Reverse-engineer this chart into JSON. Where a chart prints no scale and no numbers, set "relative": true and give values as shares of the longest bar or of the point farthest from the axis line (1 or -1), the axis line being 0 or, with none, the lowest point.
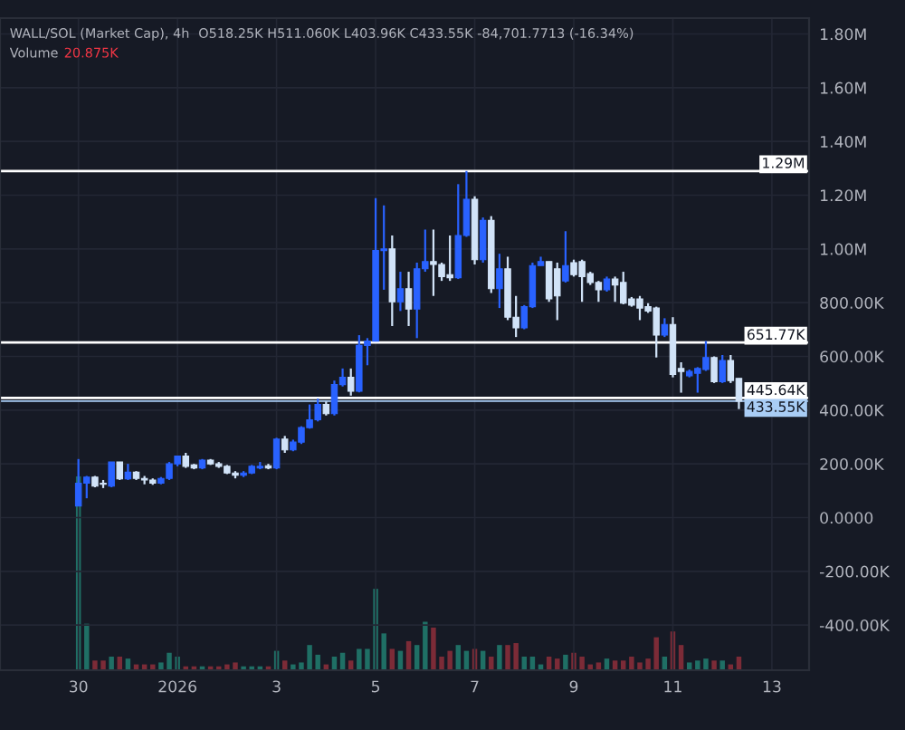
{
  "chart_data": [
    {
      "type": "candlestick",
      "title": "WALL/SOL (Market Cap), 4h",
      "annotations": [
        "O518.25K H511.060K L403.96K C433.55K -84,701.7713 (-16.34%)",
        "Volume",
        "20.875K"
      ],
      "x": [
        "2025-12-30T00:00",
        "2025-12-30T04:00",
        "2025-12-30T08:00",
        "2025-12-30T12:00",
        "2025-12-30T16:00",
        "2025-12-30T20:00",
        "2025-12-31T00:00",
        "2025-12-31T04:00",
        "2025-12-31T08:00",
        "2025-12-31T12:00",
        "2025-12-31T16:00",
        "2025-12-31T20:00",
        "2026-01-01T00:00",
        "2026-01-01T04:00",
        "2026-01-01T08:00",
        "2026-01-01T12:00",
        "2026-01-01T16:00",
        "2026-01-01T20:00",
        "2026-01-02T00:00",
        "2026-01-02T04:00",
        "2026-01-02T08:00",
        "2026-01-02T12:00",
        "2026-01-02T16:00",
        "2026-01-02T20:00",
        "2026-01-03T00:00",
        "2026-01-03T04:00",
        "2026-01-03T08:00",
        "2026-01-03T12:00",
        "2026-01-03T16:00",
        "2026-01-03T20:00",
        "2026-01-04T00:00",
        "2026-01-04T04:00",
        "2026-01-04T08:00",
        "2026-01-04T12:00",
        "2026-01-04T16:00",
        "2026-01-04T20:00",
        "2026-01-05T00:00",
        "2026-01-05T04:00",
        "2026-01-05T08:00",
        "2026-01-05T12:00",
        "2026-01-05T16:00",
        "2026-01-05T20:00",
        "2026-01-06T00:00",
        "2026-01-06T04:00",
        "2026-01-06T08:00",
        "2026-01-06T12:00",
        "2026-01-06T16:00",
        "2026-01-06T20:00",
        "2026-01-07T00:00",
        "2026-01-07T04:00",
        "2026-01-07T08:00",
        "2026-01-07T12:00",
        "2026-01-07T16:00",
        "2026-01-07T20:00",
        "2026-01-08T00:00",
        "2026-01-08T04:00",
        "2026-01-08T08:00",
        "2026-01-08T12:00",
        "2026-01-08T16:00",
        "2026-01-08T20:00",
        "2026-01-09T00:00",
        "2026-01-09T04:00",
        "2026-01-09T08:00",
        "2026-01-09T12:00",
        "2026-01-09T16:00",
        "2026-01-09T20:00",
        "2026-01-10T00:00",
        "2026-01-10T04:00",
        "2026-01-10T08:00",
        "2026-01-10T12:00",
        "2026-01-10T16:00",
        "2026-01-10T20:00",
        "2026-01-11T00:00",
        "2026-01-11T04:00",
        "2026-01-11T08:00",
        "2026-01-11T12:00",
        "2026-01-11T16:00",
        "2026-01-11T20:00",
        "2026-01-12T00:00",
        "2026-01-12T04:00",
        "2026-01-12T08:00"
      ],
      "ohlc": [
        [
          43000,
          218000,
          43000,
          128000
        ],
        [
          128000,
          155000,
          72000,
          151000
        ],
        [
          151000,
          155000,
          113000,
          117000
        ],
        [
          128000,
          140000,
          110000,
          124000
        ],
        [
          117000,
          207000,
          113000,
          207000
        ],
        [
          207000,
          207000,
          140000,
          144000
        ],
        [
          144000,
          200000,
          140000,
          169000
        ],
        [
          169000,
          173000,
          140000,
          146000
        ],
        [
          146000,
          155000,
          124000,
          140000
        ],
        [
          140000,
          146000,
          122000,
          128000
        ],
        [
          128000,
          151000,
          124000,
          146000
        ],
        [
          146000,
          207000,
          140000,
          200000
        ],
        [
          200000,
          229000,
          191000,
          229000
        ],
        [
          229000,
          241000,
          185000,
          191000
        ],
        [
          196000,
          200000,
          180000,
          185000
        ],
        [
          185000,
          218000,
          180000,
          214000
        ],
        [
          214000,
          218000,
          196000,
          200000
        ],
        [
          200000,
          207000,
          185000,
          191000
        ],
        [
          191000,
          196000,
          162000,
          166000
        ],
        [
          166000,
          173000,
          146000,
          158000
        ],
        [
          158000,
          173000,
          151000,
          166000
        ],
        [
          166000,
          196000,
          162000,
          191000
        ],
        [
          185000,
          207000,
          180000,
          191000
        ],
        [
          193000,
          200000,
          180000,
          185000
        ],
        [
          185000,
          297000,
          180000,
          292000
        ],
        [
          292000,
          304000,
          241000,
          252000
        ],
        [
          252000,
          290000,
          247000,
          281000
        ],
        [
          281000,
          340000,
          274000,
          335000
        ],
        [
          335000,
          421000,
          331000,
          364000
        ],
        [
          364000,
          443000,
          358000,
          421000
        ],
        [
          421000,
          432000,
          380000,
          387000
        ],
        [
          387000,
          510000,
          380000,
          495000
        ],
        [
          495000,
          555000,
          488000,
          522000
        ],
        [
          522000,
          555000,
          454000,
          470000
        ],
        [
          470000,
          679000,
          466000,
          641000
        ],
        [
          641000,
          668000,
          567000,
          657000
        ],
        [
          657000,
          1189000,
          657000,
          994000
        ],
        [
          994000,
          1162000,
          848000,
          1000000
        ],
        [
          1000000,
          1050000,
          713000,
          803000
        ],
        [
          803000,
          915000,
          769000,
          852000
        ],
        [
          852000,
          915000,
          713000,
          776000
        ],
        [
          776000,
          949000,
          668000,
          926000
        ],
        [
          926000,
          1072000,
          915000,
          953000
        ],
        [
          953000,
          1072000,
          825000,
          942000
        ],
        [
          942000,
          949000,
          881000,
          897000
        ],
        [
          904000,
          1050000,
          881000,
          893000
        ],
        [
          893000,
          1241000,
          888000,
          1050000
        ],
        [
          1050000,
          1290000,
          1045000,
          1185000
        ],
        [
          1185000,
          1196000,
          942000,
          960000
        ],
        [
          960000,
          1117000,
          949000,
          1106000
        ],
        [
          1106000,
          1122000,
          836000,
          852000
        ],
        [
          852000,
          982000,
          780000,
          926000
        ],
        [
          926000,
          971000,
          735000,
          746000
        ],
        [
          746000,
          825000,
          672000,
          706000
        ],
        [
          706000,
          791000,
          701000,
          785000
        ],
        [
          785000,
          949000,
          780000,
          938000
        ],
        [
          938000,
          971000,
          938000,
          953000
        ],
        [
          953000,
          953000,
          803000,
          814000
        ],
        [
          926000,
          949000,
          735000,
          825000
        ],
        [
          881000,
          1066000,
          875000,
          938000
        ],
        [
          949000,
          960000,
          897000,
          904000
        ],
        [
          953000,
          960000,
          803000,
          897000
        ],
        [
          908000,
          915000,
          866000,
          875000
        ],
        [
          875000,
          881000,
          803000,
          848000
        ],
        [
          848000,
          897000,
          841000,
          888000
        ],
        [
          888000,
          897000,
          803000,
          866000
        ],
        [
          875000,
          915000,
          794000,
          798000
        ],
        [
          814000,
          821000,
          785000,
          791000
        ],
        [
          814000,
          825000,
          735000,
          780000
        ],
        [
          785000,
          798000,
          762000,
          769000
        ],
        [
          780000,
          785000,
          596000,
          679000
        ],
        [
          679000,
          742000,
          672000,
          719000
        ],
        [
          719000,
          746000,
          522000,
          533000
        ],
        [
          555000,
          578000,
          465000,
          544000
        ],
        [
          528000,
          551000,
          522000,
          544000
        ],
        [
          537000,
          560000,
          465000,
          555000
        ],
        [
          551000,
          657000,
          546000,
          596000
        ],
        [
          596000,
          600000,
          501000,
          506000
        ],
        [
          506000,
          605000,
          501000,
          585000
        ],
        [
          585000,
          605000,
          501000,
          510000
        ],
        [
          518250,
          518250,
          403960,
          433550
        ]
      ],
      "colors": [
        "#2962ff",
        "#2962ff",
        "#d1e3f8",
        "#d1e3f8",
        "#2962ff",
        "#d1e3f8",
        "#2962ff",
        "#d1e3f8",
        "#d1e3f8",
        "#d1e3f8",
        "#2962ff",
        "#2962ff",
        "#2962ff",
        "#d1e3f8",
        "#d1e3f8",
        "#2962ff",
        "#d1e3f8",
        "#d1e3f8",
        "#d1e3f8",
        "#d1e3f8",
        "#2962ff",
        "#2962ff",
        "#2962ff",
        "#d1e3f8",
        "#2962ff",
        "#d1e3f8",
        "#2962ff",
        "#2962ff",
        "#2962ff",
        "#2962ff",
        "#d1e3f8",
        "#2962ff",
        "#2962ff",
        "#d1e3f8",
        "#2962ff",
        "#2962ff",
        "#2962ff",
        "#2962ff",
        "#d1e3f8",
        "#2962ff",
        "#d1e3f8",
        "#2962ff",
        "#2962ff",
        "#d1e3f8",
        "#d1e3f8",
        "#d1e3f8",
        "#2962ff",
        "#2962ff",
        "#d1e3f8",
        "#2962ff",
        "#d1e3f8",
        "#2962ff",
        "#d1e3f8",
        "#d1e3f8",
        "#2962ff",
        "#2962ff",
        "#2962ff",
        "#d1e3f8",
        "#d1e3f8",
        "#2962ff",
        "#d1e3f8",
        "#d1e3f8",
        "#d1e3f8",
        "#d1e3f8",
        "#2962ff",
        "#d1e3f8",
        "#d1e3f8",
        "#d1e3f8",
        "#d1e3f8",
        "#d1e3f8",
        "#d1e3f8",
        "#2962ff",
        "#d1e3f8",
        "#d1e3f8",
        "#2962ff",
        "#2962ff",
        "#2962ff",
        "#d1e3f8",
        "#2962ff",
        "#d1e3f8",
        "#d1e3f8"
      ],
      "xlim": [
        "2025-12-28T10:00",
        "2026-01-13T18:00"
      ],
      "xticks": [
        {
          "value": "2025-12-30",
          "label": null
        },
        {
          "value": "2026-01-01",
          "label": null
        },
        {
          "value": "2026-01-03",
          "label": null
        },
        {
          "value": "2026-01-05",
          "label": null
        },
        {
          "value": "2026-01-07",
          "label": null
        },
        {
          "value": "2026-01-09",
          "label": null
        },
        {
          "value": "2026-01-11",
          "label": null
        },
        {
          "value": "2026-01-13",
          "label": null
        }
      ],
      "ylim": [
        -568000,
        1859000
      ],
      "yticks": [
        {
          "value": -400000,
          "label": "-400.00K"
        },
        {
          "value": -200000,
          "label": "-200.00K"
        },
        {
          "value": 0,
          "label": "0.0000"
        },
        {
          "value": 200000,
          "label": "200.00K"
        },
        {
          "value": 400000,
          "label": "400.00K"
        },
        {
          "value": 600000,
          "label": "600.00K"
        },
        {
          "value": 800000,
          "label": "800.00K"
        },
        {
          "value": 1000000,
          "label": "1.00M"
        },
        {
          "value": 1200000,
          "label": "1.20M"
        },
        {
          "value": 1400000,
          "label": "1.40M"
        },
        {
          "value": 1600000,
          "label": "1.60M"
        },
        {
          "value": 1800000,
          "label": "1.80M"
        }
      ],
      "ref_lines": [
        {
          "axis": "y",
          "value": 1290000,
          "label": "1.29M",
          "color": "#ffffff"
        },
        {
          "axis": "y",
          "value": 651770,
          "label": "651.77K",
          "color": "#ffffff"
        },
        {
          "axis": "y",
          "value": 445640,
          "label": "445.64K",
          "color": "#ffffff"
        },
        {
          "axis": "y",
          "value": 433550,
          "label": "433.55K",
          "color": "#a9cdf5"
        }
      ],
      "grid": true,
      "tick_labels": "y"
    },
    {
      "type": "bar",
      "relative": true,
      "x": [
        "2025-12-30T00:00",
        "2025-12-30T04:00",
        "2025-12-30T08:00",
        "2025-12-30T12:00",
        "2025-12-30T16:00",
        "2025-12-30T20:00",
        "2025-12-31T00:00",
        "2025-12-31T04:00",
        "2025-12-31T08:00",
        "2025-12-31T12:00",
        "2025-12-31T16:00",
        "2025-12-31T20:00",
        "2026-01-01T00:00",
        "2026-01-01T04:00",
        "2026-01-01T08:00",
        "2026-01-01T12:00",
        "2026-01-01T16:00",
        "2026-01-01T20:00",
        "2026-01-02T00:00",
        "2026-01-02T04:00",
        "2026-01-02T08:00",
        "2026-01-02T12:00",
        "2026-01-02T16:00",
        "2026-01-02T20:00",
        "2026-01-03T00:00",
        "2026-01-03T04:00",
        "2026-01-03T08:00",
        "2026-01-03T12:00",
        "2026-01-03T16:00",
        "2026-01-03T20:00",
        "2026-01-04T00:00",
        "2026-01-04T04:00",
        "2026-01-04T08:00",
        "2026-01-04T12:00",
        "2026-01-04T16:00",
        "2026-01-04T20:00",
        "2026-01-05T00:00",
        "2026-01-05T04:00",
        "2026-01-05T08:00",
        "2026-01-05T12:00",
        "2026-01-05T16:00",
        "2026-01-05T20:00",
        "2026-01-06T00:00",
        "2026-01-06T04:00",
        "2026-01-06T08:00",
        "2026-01-06T12:00",
        "2026-01-06T16:00",
        "2026-01-06T20:00",
        "2026-01-07T00:00",
        "2026-01-07T04:00",
        "2026-01-07T08:00",
        "2026-01-07T12:00",
        "2026-01-07T16:00",
        "2026-01-07T20:00",
        "2026-01-08T00:00",
        "2026-01-08T04:00",
        "2026-01-08T08:00",
        "2026-01-08T12:00",
        "2026-01-08T16:00",
        "2026-01-08T20:00",
        "2026-01-09T00:00",
        "2026-01-09T04:00",
        "2026-01-09T08:00",
        "2026-01-09T12:00",
        "2026-01-09T16:00",
        "2026-01-09T20:00",
        "2026-01-10T00:00",
        "2026-01-10T04:00",
        "2026-01-10T08:00",
        "2026-01-10T12:00",
        "2026-01-10T16:00",
        "2026-01-10T20:00",
        "2026-01-11T00:00",
        "2026-01-11T04:00",
        "2026-01-11T08:00",
        "2026-01-11T12:00",
        "2026-01-11T16:00",
        "2026-01-11T20:00",
        "2026-01-12T00:00",
        "2026-01-12T04:00",
        "2026-01-12T08:00"
      ],
      "xlim": [
        "2025-12-28T10:00",
        "2026-01-13T18:00"
      ],
      "xticks": [
        {
          "value": "2025-12-30",
          "label": "30"
        },
        {
          "value": "2026-01-01",
          "label": "2026"
        },
        {
          "value": "2026-01-03",
          "label": "3"
        },
        {
          "value": "2026-01-05",
          "label": "5"
        },
        {
          "value": "2026-01-07",
          "label": "7"
        },
        {
          "value": "2026-01-09",
          "label": "9"
        },
        {
          "value": "2026-01-11",
          "label": "11"
        },
        {
          "value": "2026-01-13",
          "label": "13"
        }
      ],
      "values": [
        1.0,
        0.24,
        0.05,
        0.05,
        0.07,
        0.07,
        0.06,
        0.03,
        0.03,
        0.03,
        0.04,
        0.09,
        0.07,
        0.02,
        0.02,
        0.02,
        0.02,
        0.02,
        0.03,
        0.04,
        0.02,
        0.02,
        0.02,
        0.02,
        0.1,
        0.05,
        0.03,
        0.04,
        0.13,
        0.08,
        0.03,
        0.07,
        0.09,
        0.05,
        0.11,
        0.11,
        0.42,
        0.19,
        0.11,
        0.1,
        0.15,
        0.13,
        0.25,
        0.22,
        0.07,
        0.1,
        0.13,
        0.1,
        0.11,
        0.1,
        0.07,
        0.13,
        0.13,
        0.14,
        0.07,
        0.07,
        0.03,
        0.07,
        0.06,
        0.08,
        0.09,
        0.07,
        0.03,
        0.04,
        0.06,
        0.05,
        0.05,
        0.07,
        0.04,
        0.06,
        0.17,
        0.07,
        0.2,
        0.13,
        0.04,
        0.05,
        0.06,
        0.05,
        0.05,
        0.03,
        0.07
      ],
      "colors": [
        "#1f6f65",
        "#1f6f65",
        "#7c2b37",
        "#7c2b37",
        "#1f6f65",
        "#7c2b37",
        "#1f6f65",
        "#7c2b37",
        "#7c2b37",
        "#7c2b37",
        "#1f6f65",
        "#1f6f65",
        "#1f6f65",
        "#7c2b37",
        "#7c2b37",
        "#1f6f65",
        "#7c2b37",
        "#7c2b37",
        "#7c2b37",
        "#7c2b37",
        "#1f6f65",
        "#1f6f65",
        "#1f6f65",
        "#7c2b37",
        "#1f6f65",
        "#7c2b37",
        "#1f6f65",
        "#1f6f65",
        "#1f6f65",
        "#1f6f65",
        "#7c2b37",
        "#1f6f65",
        "#1f6f65",
        "#7c2b37",
        "#1f6f65",
        "#1f6f65",
        "#1f6f65",
        "#1f6f65",
        "#7c2b37",
        "#1f6f65",
        "#7c2b37",
        "#1f6f65",
        "#1f6f65",
        "#7c2b37",
        "#7c2b37",
        "#7c2b37",
        "#1f6f65",
        "#1f6f65",
        "#7c2b37",
        "#1f6f65",
        "#7c2b37",
        "#1f6f65",
        "#7c2b37",
        "#7c2b37",
        "#1f6f65",
        "#1f6f65",
        "#1f6f65",
        "#7c2b37",
        "#7c2b37",
        "#1f6f65",
        "#7c2b37",
        "#7c2b37",
        "#7c2b37",
        "#7c2b37",
        "#1f6f65",
        "#7c2b37",
        "#7c2b37",
        "#7c2b37",
        "#7c2b37",
        "#7c2b37",
        "#7c2b37",
        "#1f6f65",
        "#7c2b37",
        "#7c2b37",
        "#1f6f65",
        "#1f6f65",
        "#1f6f65",
        "#7c2b37",
        "#1f6f65",
        "#7c2b37",
        "#7c2b37"
      ]
    }
  ]
}
